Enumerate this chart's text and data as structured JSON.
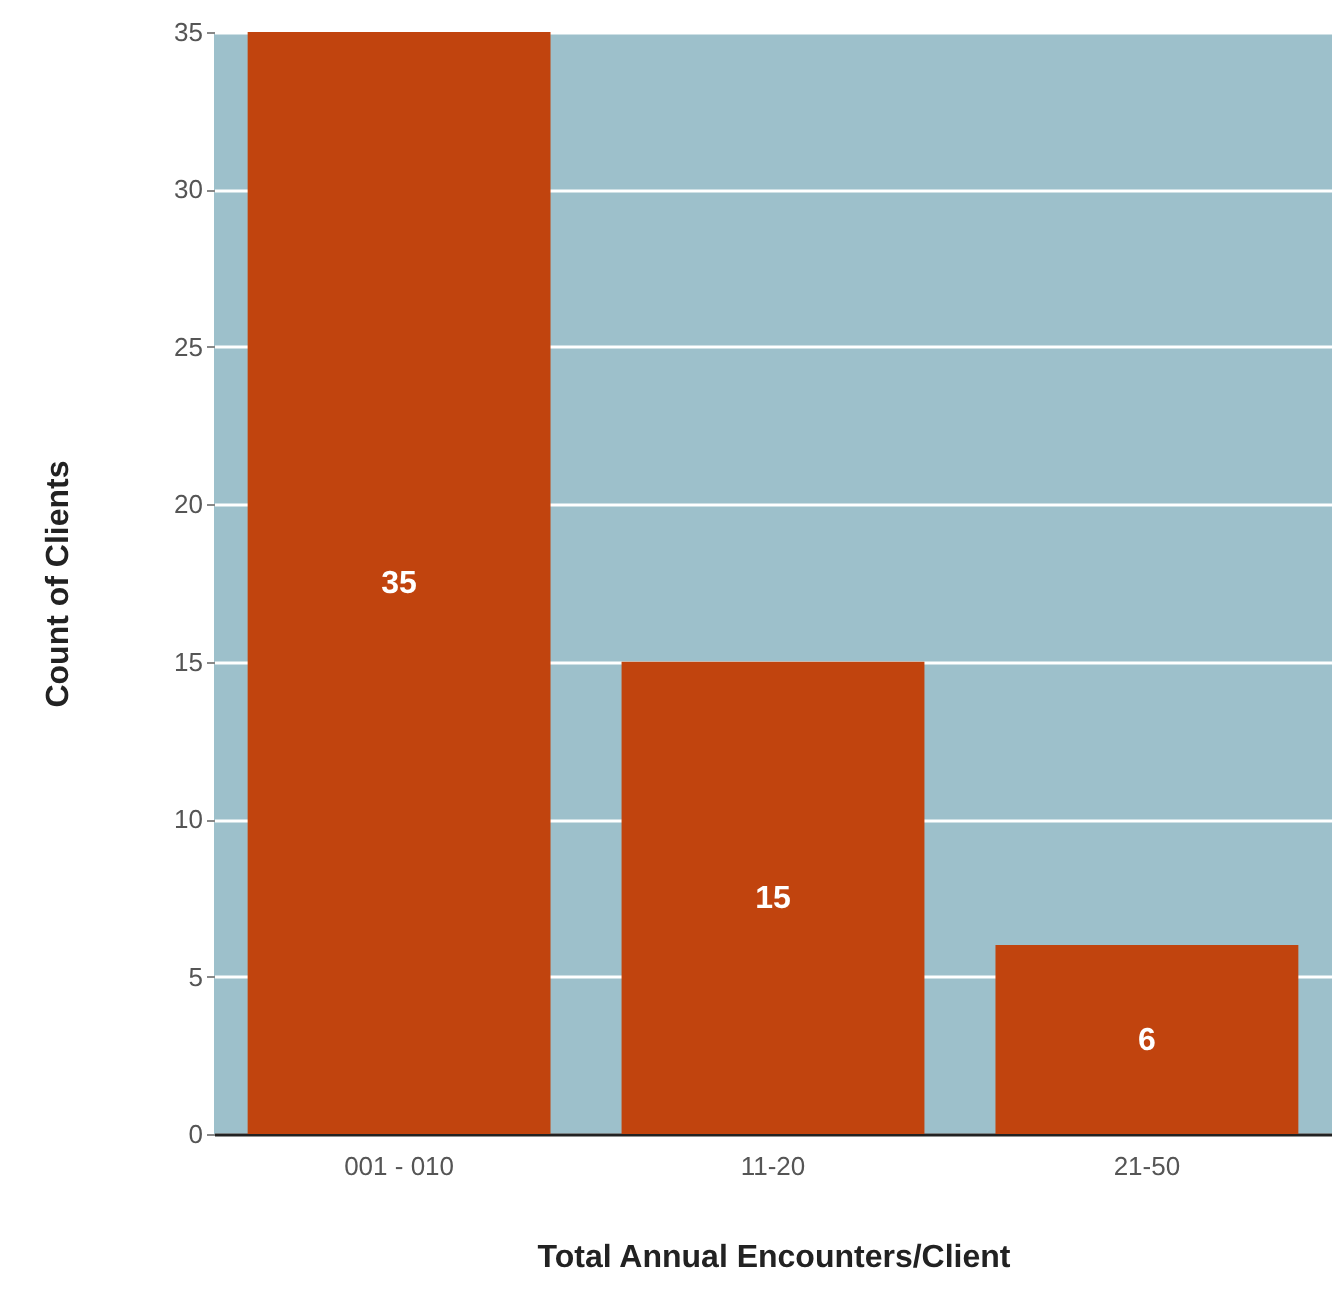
{
  "chart_data": {
    "type": "bar",
    "xlabel": "Total Annual Encounters/Client",
    "ylabel": "Count of Clients",
    "categories": [
      "001 - 010",
      "11-20",
      "21-50"
    ],
    "values": [
      35,
      15,
      6
    ],
    "color": "#c1440e",
    "ylim": [
      0,
      35
    ],
    "yticks": [
      0,
      5,
      10,
      15,
      20,
      25,
      30,
      35
    ],
    "grid": "y",
    "data_labels": true
  }
}
